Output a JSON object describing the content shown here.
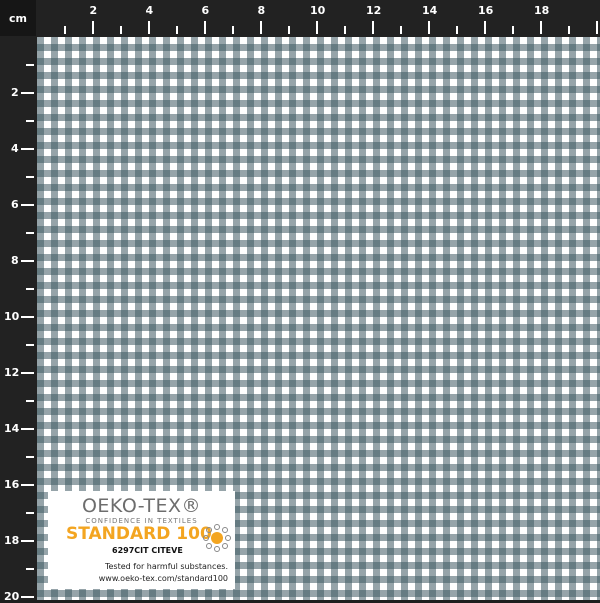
{
  "ruler": {
    "unit": "cm",
    "top_labels": [
      "2",
      "4",
      "6",
      "8",
      "10",
      "12",
      "14",
      "16",
      "18"
    ],
    "left_labels": [
      "2",
      "4",
      "6",
      "8",
      "10",
      "12",
      "14",
      "16",
      "18",
      "20"
    ]
  },
  "fabric": {
    "pattern": "gingham",
    "colors": {
      "dark": "#3f5a63",
      "light": "#ffffff"
    }
  },
  "badge": {
    "title": "OEKO-TEX®",
    "subtitle": "CONFIDENCE IN TEXTILES",
    "standard": "STANDARD 100",
    "code": "6297CIT CITEVE",
    "line1": "Tested for harmful substances.",
    "line2": "www.oeko-tex.com/standard100",
    "accent": "#f3a521"
  }
}
